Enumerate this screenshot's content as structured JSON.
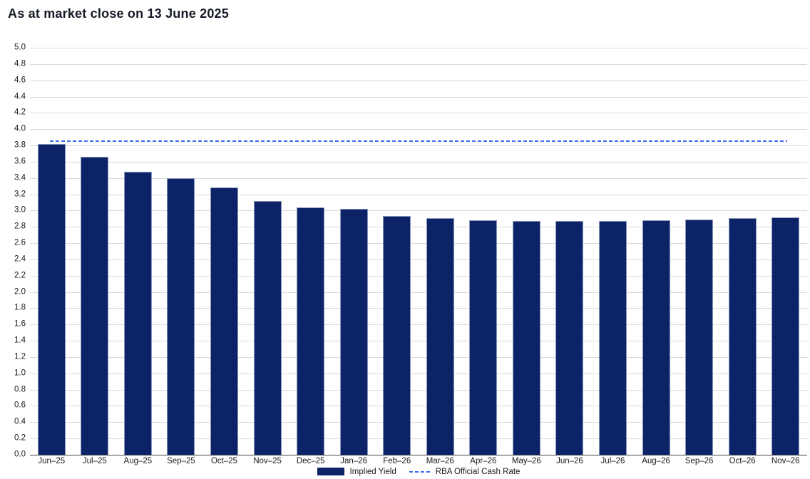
{
  "title": "As at market close on 13 June 2025",
  "chart_data": {
    "type": "bar",
    "title": "As at market close on 13 June 2025",
    "categories": [
      "Jun–25",
      "Jul–25",
      "Aug–25",
      "Sep–25",
      "Oct–25",
      "Nov–25",
      "Dec–25",
      "Jan–26",
      "Feb–26",
      "Mar–26",
      "Apr–26",
      "May–26",
      "Jun–26",
      "Jul–26",
      "Aug–26",
      "Sep–26",
      "Oct–26",
      "Nov–26"
    ],
    "series": [
      {
        "name": "Implied Yield",
        "type": "bar",
        "values": [
          3.82,
          3.66,
          3.48,
          3.4,
          3.28,
          3.12,
          3.04,
          3.02,
          2.93,
          2.91,
          2.88,
          2.87,
          2.87,
          2.87,
          2.88,
          2.89,
          2.91,
          2.92
        ]
      },
      {
        "name": "RBA Official Cash Rate",
        "type": "line",
        "style": "dashed",
        "value": 3.85
      }
    ],
    "xlabel": "",
    "ylabel": "",
    "ylim": [
      0.0,
      5.0
    ],
    "ytick_step": 0.2,
    "y_tick_labels": [
      "5.0",
      "4.8",
      "4.6",
      "4.4",
      "4.2",
      "4.0",
      "3.8",
      "3.6",
      "3.4",
      "3.2",
      "3.0",
      "2.8",
      "2.6",
      "2.4",
      "2.2",
      "2.0",
      "1.8",
      "1.6",
      "1.4",
      "1.2",
      "1.0",
      "0.8",
      "0.6",
      "0.4",
      "0.2",
      "0.0"
    ],
    "grid": "horizontal",
    "legend_position": "bottom-center"
  },
  "colors": {
    "bar_fill": "#0c2368",
    "bar_border": "#8895bb",
    "dashed_line": "#3a6cf0",
    "gridline": "#d9d9d9",
    "axis_line": "#454545",
    "text": "#1a1a1a",
    "title_text": "#161a27",
    "background": "#ffffff"
  }
}
